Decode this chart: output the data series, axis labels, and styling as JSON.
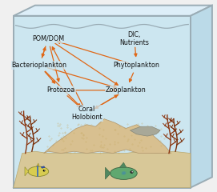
{
  "fig_width": 2.71,
  "fig_height": 2.4,
  "dpi": 100,
  "bg_color": "#f0f0f0",
  "box_bg": "#ddeef5",
  "arrow_color": "#e06818",
  "border_color": "#a8b8c0",
  "nodes": {
    "POM_DOM": [
      0.22,
      0.8,
      "POM/DOM"
    ],
    "DIC_Nutrients": [
      0.62,
      0.8,
      "DIC,\nNutrients"
    ],
    "Bacterioplankton": [
      0.18,
      0.66,
      "Bacterioplankton"
    ],
    "Phytoplankton": [
      0.63,
      0.66,
      "Phytoplankton"
    ],
    "Protozoa": [
      0.28,
      0.53,
      "Protozoa"
    ],
    "Zooplankton": [
      0.58,
      0.53,
      "Zooplankton"
    ],
    "Coral_Holobiont": [
      0.4,
      0.41,
      "Coral\nHolobiont"
    ]
  },
  "arrows": [
    [
      "POM_DOM",
      "Bacterioplankton"
    ],
    [
      "Bacterioplankton",
      "POM_DOM"
    ],
    [
      "POM_DOM",
      "Zooplankton"
    ],
    [
      "Bacterioplankton",
      "Zooplankton"
    ],
    [
      "Bacterioplankton",
      "Protozoa"
    ],
    [
      "DIC_Nutrients",
      "Phytoplankton"
    ],
    [
      "Phytoplankton",
      "Zooplankton"
    ],
    [
      "Phytoplankton",
      "POM_DOM"
    ],
    [
      "Protozoa",
      "Zooplankton"
    ],
    [
      "Zooplankton",
      "Coral_Holobiont"
    ],
    [
      "Protozoa",
      "Coral_Holobiont"
    ],
    [
      "Bacterioplankton",
      "Coral_Holobiont"
    ],
    [
      "Coral_Holobiont",
      "POM_DOM"
    ],
    [
      "Coral_Holobiont",
      "Zooplankton"
    ],
    [
      "POM_DOM",
      "Protozoa"
    ]
  ],
  "font_size": 5.8,
  "label_color": "#111111",
  "box_color": "#cce6f0",
  "top_color": "#ddeef8",
  "right_color": "#bbdae8",
  "border_col": "#9aacb5",
  "sand_color": "#d8c898",
  "coral_color": "#d8c090",
  "seaweed_color": "#8B3510",
  "fish1_color": "#d8cc50",
  "fish2_color": "#60a878"
}
